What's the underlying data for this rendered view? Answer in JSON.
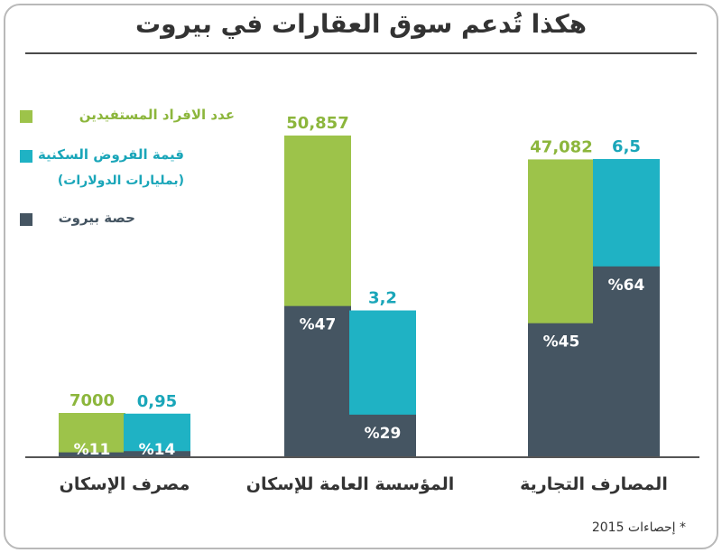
{
  "title": "هكذا تُدعم سوق العقارات في بيروت",
  "legend": {
    "beneficiaries": "عدد الافراد المستفيدين",
    "loans": "قيمة القروض السكنية",
    "loans_unit": "(بمليارات الدولارات)",
    "beirut_share": "حصة بيروت"
  },
  "source": "* إحصاءات 2015",
  "colors": {
    "beneficiaries": "#9dc34a",
    "loans": "#1fb2c4",
    "beirut_share": "#455562",
    "label_green": "#8cb63c",
    "label_cyan": "#1aa6b9",
    "share_text": "#ffffff"
  },
  "chart_data": {
    "type": "bar",
    "categories": [
      "مصرف الإسكان",
      "المؤسسة العامة للإسكان",
      "المصارف التجارية"
    ],
    "series": [
      {
        "name": "عدد الافراد المستفيدين",
        "values": [
          7000,
          50857,
          47082
        ],
        "labels": [
          "7000",
          "50,857",
          "47,082"
        ],
        "beirut_share_pct": [
          11,
          47,
          45
        ],
        "share_labels": [
          "%11",
          "%47",
          "%45"
        ]
      },
      {
        "name": "قيمة القروض السكنية",
        "values": [
          0.95,
          3.2,
          6.5
        ],
        "labels": [
          "0,95",
          "3,2",
          "6,5"
        ],
        "beirut_share_pct": [
          14,
          29,
          64
        ],
        "share_labels": [
          "%14",
          "%29",
          "%64"
        ]
      }
    ]
  }
}
